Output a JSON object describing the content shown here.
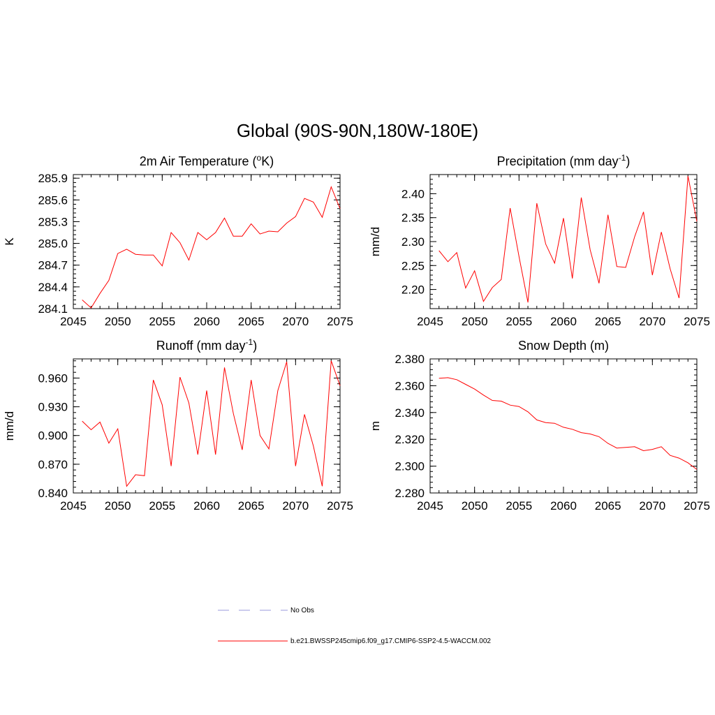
{
  "title": "Global (90S-90N,180W-180E)",
  "legend": {
    "items": [
      {
        "label": "No Obs",
        "color": "#9999dd",
        "style": "dashed"
      },
      {
        "label": "b.e21.BWSSP245cmip6.f09_g17.CMIP6-SSP2-4.5-WACCM.002",
        "color": "#ff0000",
        "style": "solid"
      }
    ]
  },
  "chart_data": [
    {
      "type": "line",
      "title_main": "2m Air Temperature (",
      "title_sup": "o",
      "title_tail": "K)",
      "ylabel": "K",
      "xlim": [
        2045,
        2075
      ],
      "ylim": [
        284.1,
        285.95
      ],
      "xticks": [
        2045,
        2050,
        2055,
        2060,
        2065,
        2070,
        2075
      ],
      "xtick_labels": [
        "2045",
        "2050",
        "2055",
        "2060",
        "2065",
        "2070",
        "2075"
      ],
      "yticks": [
        284.1,
        284.4,
        284.7,
        285.0,
        285.3,
        285.6,
        285.9
      ],
      "ytick_labels": [
        "284.1",
        "284.4",
        "284.7",
        "285.0",
        "285.3",
        "285.6",
        "285.9"
      ],
      "x": [
        2046,
        2047,
        2048,
        2049,
        2050,
        2051,
        2052,
        2053,
        2054,
        2055,
        2056,
        2057,
        2058,
        2059,
        2060,
        2061,
        2062,
        2063,
        2064,
        2065,
        2066,
        2067,
        2068,
        2069,
        2070,
        2071,
        2072,
        2073,
        2074,
        2075
      ],
      "series": [
        {
          "name": "b.e21.BWSSP245cmip6.f09_g17.CMIP6-SSP2-4.5-WACCM.002",
          "color": "#ff0000",
          "values": [
            284.22,
            284.11,
            284.31,
            284.49,
            284.86,
            284.92,
            284.85,
            284.84,
            284.84,
            284.69,
            285.15,
            285.01,
            284.77,
            285.15,
            285.05,
            285.15,
            285.35,
            285.1,
            285.1,
            285.27,
            285.13,
            285.17,
            285.16,
            285.28,
            285.37,
            285.62,
            285.57,
            285.36,
            285.78,
            285.48
          ]
        }
      ]
    },
    {
      "type": "line",
      "title_main": "Precipitation (mm day",
      "title_sup": "-1",
      "title_tail": ")",
      "ylabel": "mm/d",
      "xlim": [
        2045,
        2075
      ],
      "ylim": [
        2.16,
        2.44
      ],
      "xticks": [
        2045,
        2050,
        2055,
        2060,
        2065,
        2070,
        2075
      ],
      "xtick_labels": [
        "2045",
        "2050",
        "2055",
        "2060",
        "2065",
        "2070",
        "2075"
      ],
      "yticks": [
        2.2,
        2.25,
        2.3,
        2.35,
        2.4
      ],
      "ytick_labels": [
        "2.20",
        "2.25",
        "2.30",
        "2.35",
        "2.40"
      ],
      "x": [
        2046,
        2047,
        2048,
        2049,
        2050,
        2051,
        2052,
        2053,
        2054,
        2055,
        2056,
        2057,
        2058,
        2059,
        2060,
        2061,
        2062,
        2063,
        2064,
        2065,
        2066,
        2067,
        2068,
        2069,
        2070,
        2071,
        2072,
        2073,
        2074,
        2075
      ],
      "series": [
        {
          "name": "b.e21.BWSSP245cmip6.f09_g17.CMIP6-SSP2-4.5-WACCM.002",
          "color": "#ff0000",
          "values": [
            2.281,
            2.258,
            2.277,
            2.203,
            2.239,
            2.175,
            2.204,
            2.221,
            2.37,
            2.269,
            2.173,
            2.38,
            2.295,
            2.255,
            2.349,
            2.223,
            2.392,
            2.283,
            2.213,
            2.356,
            2.248,
            2.246,
            2.31,
            2.362,
            2.23,
            2.32,
            2.243,
            2.182,
            2.437,
            2.342
          ]
        }
      ]
    },
    {
      "type": "line",
      "title_main": "Runoff (mm day",
      "title_sup": "-1",
      "title_tail": ")",
      "ylabel": "mm/d",
      "xlim": [
        2045,
        2075
      ],
      "ylim": [
        0.84,
        0.98
      ],
      "xticks": [
        2045,
        2050,
        2055,
        2060,
        2065,
        2070,
        2075
      ],
      "xtick_labels": [
        "2045",
        "2050",
        "2055",
        "2060",
        "2065",
        "2070",
        "2075"
      ],
      "yticks": [
        0.84,
        0.87,
        0.9,
        0.93,
        0.96
      ],
      "ytick_labels": [
        "0.840",
        "0.870",
        "0.900",
        "0.930",
        "0.960"
      ],
      "x": [
        2046,
        2047,
        2048,
        2049,
        2050,
        2051,
        2052,
        2053,
        2054,
        2055,
        2056,
        2057,
        2058,
        2059,
        2060,
        2061,
        2062,
        2063,
        2064,
        2065,
        2066,
        2067,
        2068,
        2069,
        2070,
        2071,
        2072,
        2073,
        2074,
        2075
      ],
      "series": [
        {
          "name": "b.e21.BWSSP245cmip6.f09_g17.CMIP6-SSP2-4.5-WACCM.002",
          "color": "#ff0000",
          "values": [
            0.915,
            0.906,
            0.914,
            0.892,
            0.907,
            0.847,
            0.859,
            0.858,
            0.958,
            0.932,
            0.868,
            0.961,
            0.934,
            0.88,
            0.947,
            0.88,
            0.971,
            0.923,
            0.885,
            0.958,
            0.9,
            0.886,
            0.947,
            0.977,
            0.868,
            0.922,
            0.889,
            0.847,
            0.978,
            0.952
          ]
        }
      ]
    },
    {
      "type": "line",
      "title_main": "Snow Depth (m)",
      "title_sup": "",
      "title_tail": "",
      "ylabel": "m",
      "xlim": [
        2045,
        2075
      ],
      "ylim": [
        2.28,
        2.38
      ],
      "xticks": [
        2045,
        2050,
        2055,
        2060,
        2065,
        2070,
        2075
      ],
      "xtick_labels": [
        "2045",
        "2050",
        "2055",
        "2060",
        "2065",
        "2070",
        "2075"
      ],
      "yticks": [
        2.28,
        2.3,
        2.32,
        2.34,
        2.36,
        2.38
      ],
      "ytick_labels": [
        "2.280",
        "2.300",
        "2.320",
        "2.340",
        "2.360",
        "2.380"
      ],
      "x": [
        2046,
        2047,
        2048,
        2049,
        2050,
        2051,
        2052,
        2053,
        2054,
        2055,
        2056,
        2057,
        2058,
        2059,
        2060,
        2061,
        2062,
        2063,
        2064,
        2065,
        2066,
        2067,
        2068,
        2069,
        2070,
        2071,
        2072,
        2073,
        2074,
        2075
      ],
      "series": [
        {
          "name": "b.e21.BWSSP245cmip6.f09_g17.CMIP6-SSP2-4.5-WACCM.002",
          "color": "#ff0000",
          "values": [
            2.3655,
            2.366,
            2.3645,
            2.361,
            2.3575,
            2.353,
            2.349,
            2.3485,
            2.3455,
            2.3445,
            2.3405,
            2.3345,
            2.3325,
            2.332,
            2.329,
            2.3275,
            2.325,
            2.324,
            2.322,
            2.317,
            2.3135,
            2.314,
            2.3145,
            2.3115,
            2.3125,
            2.3145,
            2.308,
            2.306,
            2.3025,
            2.2975
          ]
        }
      ]
    }
  ]
}
